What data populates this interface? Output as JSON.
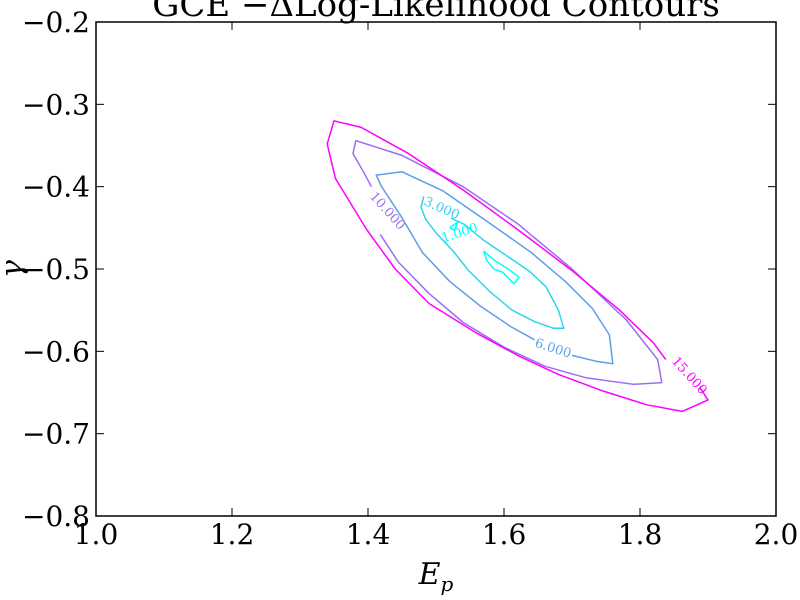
{
  "chart_data": {
    "type": "contour",
    "title": "GCE −ΔLog-Likelihood Contours",
    "xlabel": "E_p",
    "ylabel": "γ",
    "xlim": [
      1.0,
      2.0
    ],
    "ylim": [
      -0.8,
      -0.2
    ],
    "xticks": [
      1.0,
      1.2,
      1.4,
      1.6,
      1.8,
      2.0
    ],
    "xtick_labels": [
      "1.0",
      "1.2",
      "1.4",
      "1.6",
      "1.8",
      "2.0"
    ],
    "yticks": [
      -0.2,
      -0.3,
      -0.4,
      -0.5,
      -0.6,
      -0.7,
      -0.8
    ],
    "ytick_labels": [
      "−0.2",
      "−0.3",
      "−0.4",
      "−0.5",
      "−0.6",
      "−0.7",
      "−0.8"
    ],
    "grid": false,
    "levels": [
      {
        "level": 1.0,
        "label": "1.000",
        "color": "#00ffff",
        "label_pos": [
          1.535,
          -0.457
        ],
        "label_angle": -18,
        "paths": [
          [
            [
              1.52,
              -0.45
            ],
            [
              1.532,
              -0.443
            ],
            [
              1.527,
              -0.453
            ],
            [
              1.52,
              -0.45
            ]
          ],
          [
            [
              1.57,
              -0.478
            ],
            [
              1.585,
              -0.489
            ],
            [
              1.606,
              -0.5
            ],
            [
              1.622,
              -0.51
            ],
            [
              1.615,
              -0.518
            ],
            [
              1.598,
              -0.504
            ],
            [
              1.585,
              -0.5
            ],
            [
              1.575,
              -0.49
            ],
            [
              1.57,
              -0.478
            ]
          ]
        ]
      },
      {
        "level": 3.0,
        "label": "3.000",
        "color": "#2cd4ef",
        "label_pos": [
          1.508,
          -0.427
        ],
        "label_angle": 24,
        "paths": [
          [
            [
              1.482,
              -0.412
            ],
            [
              1.478,
              -0.425
            ],
            [
              1.485,
              -0.44
            ],
            [
              1.5,
              -0.456
            ],
            [
              1.525,
              -0.478
            ],
            [
              1.548,
              -0.502
            ],
            [
              1.58,
              -0.528
            ],
            [
              1.612,
              -0.55
            ],
            [
              1.645,
              -0.564
            ],
            [
              1.673,
              -0.572
            ],
            [
              1.688,
              -0.572
            ],
            [
              1.68,
              -0.55
            ],
            [
              1.662,
              -0.522
            ],
            [
              1.638,
              -0.503
            ],
            [
              1.604,
              -0.484
            ],
            [
              1.57,
              -0.465
            ],
            [
              1.542,
              -0.446
            ],
            [
              1.522,
              -0.438
            ]
          ]
        ]
      },
      {
        "level": 6.0,
        "label": "6.000",
        "color": "#5e9ee8",
        "label_pos": [
          1.672,
          -0.597
        ],
        "label_angle": 18,
        "paths": [
          [
            [
              1.645,
              -0.586
            ],
            [
              1.61,
              -0.57
            ],
            [
              1.565,
              -0.545
            ],
            [
              1.52,
              -0.515
            ],
            [
              1.48,
              -0.48
            ],
            [
              1.448,
              -0.435
            ],
            [
              1.42,
              -0.4
            ],
            [
              1.412,
              -0.386
            ],
            [
              1.45,
              -0.382
            ],
            [
              1.51,
              -0.405
            ],
            [
              1.58,
              -0.445
            ],
            [
              1.64,
              -0.48
            ],
            [
              1.69,
              -0.515
            ],
            [
              1.73,
              -0.548
            ],
            [
              1.755,
              -0.58
            ],
            [
              1.76,
              -0.615
            ],
            [
              1.735,
              -0.612
            ],
            [
              1.7,
              -0.605
            ]
          ]
        ]
      },
      {
        "level": 10.0,
        "label": "10.000",
        "color": "#9a6ff0",
        "label_pos": [
          1.428,
          -0.43
        ],
        "label_angle": 48,
        "paths": [
          [
            [
              1.418,
              -0.458
            ],
            [
              1.445,
              -0.492
            ],
            [
              1.49,
              -0.53
            ],
            [
              1.54,
              -0.565
            ],
            [
              1.6,
              -0.595
            ],
            [
              1.66,
              -0.618
            ],
            [
              1.72,
              -0.632
            ],
            [
              1.79,
              -0.64
            ],
            [
              1.832,
              -0.638
            ],
            [
              1.826,
              -0.61
            ],
            [
              1.78,
              -0.562
            ],
            [
              1.7,
              -0.5
            ],
            [
              1.62,
              -0.445
            ],
            [
              1.54,
              -0.4
            ],
            [
              1.45,
              -0.362
            ],
            [
              1.382,
              -0.344
            ],
            [
              1.378,
              -0.36
            ],
            [
              1.392,
              -0.38
            ],
            [
              1.405,
              -0.4
            ]
          ]
        ]
      },
      {
        "level": 15.0,
        "label": "15.000",
        "color": "#ff00ff",
        "label_pos": [
          1.872,
          -0.63
        ],
        "label_angle": 48,
        "paths": [
          [
            [
              1.888,
              -0.644
            ],
            [
              1.9,
              -0.659
            ],
            [
              1.862,
              -0.673
            ],
            [
              1.81,
              -0.665
            ],
            [
              1.745,
              -0.648
            ],
            [
              1.68,
              -0.628
            ],
            [
              1.62,
              -0.605
            ],
            [
              1.56,
              -0.578
            ],
            [
              1.49,
              -0.542
            ],
            [
              1.44,
              -0.5
            ],
            [
              1.398,
              -0.452
            ],
            [
              1.352,
              -0.39
            ],
            [
              1.34,
              -0.348
            ],
            [
              1.35,
              -0.32
            ],
            [
              1.39,
              -0.328
            ],
            [
              1.46,
              -0.36
            ],
            [
              1.54,
              -0.404
            ],
            [
              1.62,
              -0.452
            ],
            [
              1.7,
              -0.502
            ],
            [
              1.77,
              -0.55
            ],
            [
              1.82,
              -0.59
            ],
            [
              1.838,
              -0.61
            ]
          ]
        ]
      }
    ]
  }
}
